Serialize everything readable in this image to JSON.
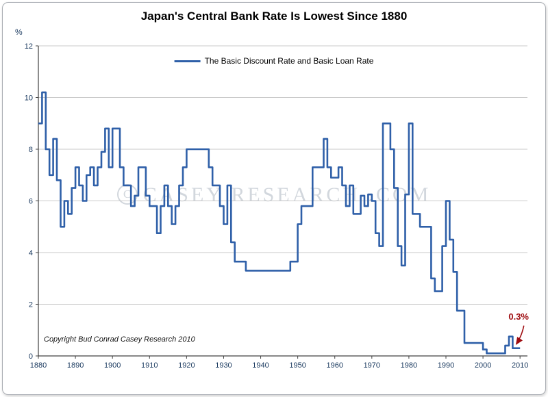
{
  "chart_data": {
    "type": "line",
    "title": "Japan's Central Bank Rate Is Lowest Since 1880",
    "ylabel": "%",
    "xlabel": "",
    "legend": [
      "The Basic Discount Rate and Basic Loan Rate"
    ],
    "legend_position": "top-center-inside",
    "grid": true,
    "interpolation": "step-after",
    "xlim": [
      1880,
      2012
    ],
    "ylim": [
      0,
      12
    ],
    "x_ticks": [
      1880,
      1890,
      1900,
      1910,
      1920,
      1930,
      1940,
      1950,
      1960,
      1970,
      1980,
      1990,
      2000,
      2010
    ],
    "y_ticks": [
      0,
      2,
      4,
      6,
      8,
      10,
      12
    ],
    "line_color": "#2e5fa8",
    "grid_color": "#c8c8c8",
    "axis_color": "#404040",
    "tick_label_color": "#17375d",
    "series": [
      {
        "name": "The Basic Discount Rate and Basic Loan Rate",
        "points": [
          [
            1880,
            9.0
          ],
          [
            1881,
            10.2
          ],
          [
            1882,
            8.0
          ],
          [
            1883,
            7.0
          ],
          [
            1884,
            8.4
          ],
          [
            1885,
            6.8
          ],
          [
            1886,
            5.0
          ],
          [
            1887,
            6.0
          ],
          [
            1888,
            5.5
          ],
          [
            1889,
            6.5
          ],
          [
            1890,
            7.3
          ],
          [
            1891,
            6.6
          ],
          [
            1892,
            6.0
          ],
          [
            1893,
            7.0
          ],
          [
            1894,
            7.3
          ],
          [
            1895,
            6.6
          ],
          [
            1896,
            7.3
          ],
          [
            1897,
            7.9
          ],
          [
            1898,
            8.8
          ],
          [
            1899,
            7.3
          ],
          [
            1900,
            8.8
          ],
          [
            1901,
            8.8
          ],
          [
            1902,
            7.3
          ],
          [
            1903,
            6.6
          ],
          [
            1905,
            5.8
          ],
          [
            1906,
            6.2
          ],
          [
            1907,
            7.3
          ],
          [
            1909,
            6.2
          ],
          [
            1910,
            5.8
          ],
          [
            1912,
            4.75
          ],
          [
            1913,
            5.8
          ],
          [
            1914,
            6.6
          ],
          [
            1915,
            5.8
          ],
          [
            1916,
            5.1
          ],
          [
            1917,
            5.8
          ],
          [
            1918,
            6.6
          ],
          [
            1919,
            7.3
          ],
          [
            1920,
            8.0
          ],
          [
            1926,
            7.3
          ],
          [
            1927,
            6.6
          ],
          [
            1929,
            5.8
          ],
          [
            1930,
            5.1
          ],
          [
            1931,
            6.6
          ],
          [
            1932,
            4.4
          ],
          [
            1933,
            3.65
          ],
          [
            1936,
            3.3
          ],
          [
            1948,
            3.65
          ],
          [
            1950,
            5.1
          ],
          [
            1951,
            5.8
          ],
          [
            1954,
            7.3
          ],
          [
            1957,
            8.4
          ],
          [
            1958,
            7.3
          ],
          [
            1959,
            6.9
          ],
          [
            1961,
            7.3
          ],
          [
            1962,
            6.6
          ],
          [
            1963,
            5.8
          ],
          [
            1964,
            6.6
          ],
          [
            1965,
            5.5
          ],
          [
            1967,
            6.2
          ],
          [
            1968,
            5.8
          ],
          [
            1969,
            6.25
          ],
          [
            1970,
            6.0
          ],
          [
            1971,
            4.75
          ],
          [
            1972,
            4.25
          ],
          [
            1973,
            9.0
          ],
          [
            1975,
            8.0
          ],
          [
            1976,
            6.5
          ],
          [
            1977,
            4.25
          ],
          [
            1978,
            3.5
          ],
          [
            1979,
            6.25
          ],
          [
            1980,
            9.0
          ],
          [
            1981,
            5.5
          ],
          [
            1983,
            5.0
          ],
          [
            1986,
            3.0
          ],
          [
            1987,
            2.5
          ],
          [
            1989,
            4.25
          ],
          [
            1990,
            6.0
          ],
          [
            1991,
            4.5
          ],
          [
            1992,
            3.25
          ],
          [
            1993,
            1.75
          ],
          [
            1995,
            0.5
          ],
          [
            2000,
            0.25
          ],
          [
            2001,
            0.1
          ],
          [
            2006,
            0.4
          ],
          [
            2007,
            0.75
          ],
          [
            2008,
            0.3
          ],
          [
            2010,
            0.3
          ]
        ]
      }
    ],
    "annotation": {
      "label": "0.3%",
      "color": "#9e0b0f",
      "x": 2009,
      "y": 0.3
    },
    "watermark": "CASEY RESEARCH .COM",
    "watermark_symbol": "C",
    "copyright": "Copyright Bud Conrad Casey Research 2010"
  }
}
